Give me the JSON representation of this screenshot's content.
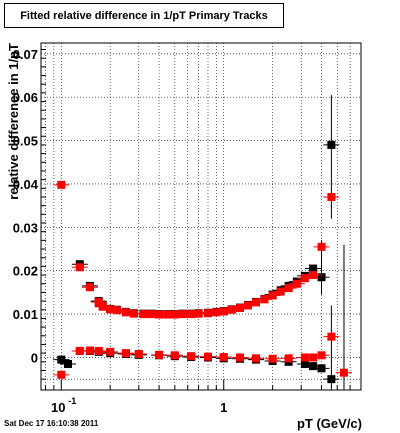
{
  "chart_data": {
    "type": "scatter",
    "title": "Fitted relative difference in 1/pT  Primary Tracks",
    "xlabel": "pT (GeV/c)",
    "ylabel": "relative difference in 1/pT",
    "x_scale": "log",
    "xlim": [
      0.075,
      7.0
    ],
    "ylim": [
      -0.0075,
      0.0725
    ],
    "grid": true,
    "x_ticks": [
      {
        "value": 0.1,
        "label": "10",
        "exponent": "-1"
      },
      {
        "value": 1,
        "label": "1",
        "exponent": ""
      }
    ],
    "y_ticks": [
      {
        "value": 0,
        "label": "0"
      },
      {
        "value": 0.01,
        "label": "0.01"
      },
      {
        "value": 0.02,
        "label": "0.02"
      },
      {
        "value": 0.03,
        "label": "0.03"
      },
      {
        "value": 0.04,
        "label": "0.04"
      },
      {
        "value": 0.05,
        "label": "0.05"
      },
      {
        "value": 0.06,
        "label": "0.06"
      },
      {
        "value": 0.07,
        "label": "0.07"
      }
    ],
    "series": [
      {
        "color": "#000000",
        "marker": "square",
        "points": [
          [
            0.1,
            -0.0005
          ],
          [
            0.13,
            0.0215
          ],
          [
            0.15,
            0.0165
          ],
          [
            0.17,
            0.013
          ],
          [
            0.18,
            0.0118
          ],
          [
            0.2,
            0.0112
          ],
          [
            0.22,
            0.011
          ],
          [
            0.25,
            0.0105
          ],
          [
            0.28,
            0.0102
          ],
          [
            0.32,
            0.0101
          ],
          [
            0.36,
            0.0101
          ],
          [
            0.4,
            0.01
          ],
          [
            0.45,
            0.01
          ],
          [
            0.5,
            0.01
          ],
          [
            0.56,
            0.0101
          ],
          [
            0.63,
            0.0101
          ],
          [
            0.7,
            0.0102
          ],
          [
            0.8,
            0.0103
          ],
          [
            0.9,
            0.0105
          ],
          [
            1.0,
            0.0107
          ],
          [
            1.12,
            0.0111
          ],
          [
            1.26,
            0.0115
          ],
          [
            1.41,
            0.0121
          ],
          [
            1.58,
            0.0128
          ],
          [
            1.78,
            0.0135
          ],
          [
            2.0,
            0.0145
          ],
          [
            2.24,
            0.0155
          ],
          [
            2.51,
            0.0165
          ],
          [
            2.82,
            0.0175
          ],
          [
            3.16,
            0.0188
          ],
          [
            3.55,
            0.0205
          ],
          [
            4.0,
            0.0185
          ],
          [
            4.6,
            0.049
          ],
          [
            0.11,
            -0.0015
          ],
          [
            0.13,
            0.0015
          ],
          [
            0.15,
            0.0015
          ],
          [
            0.17,
            0.0013
          ],
          [
            0.2,
            0.001
          ],
          [
            0.25,
            0.0008
          ],
          [
            0.3,
            0.0006
          ],
          [
            0.4,
            0.0005
          ],
          [
            0.5,
            0.0003
          ],
          [
            0.63,
            0.0001
          ],
          [
            0.8,
            0.0
          ],
          [
            1.0,
            -0.0002
          ],
          [
            1.26,
            -0.0003
          ],
          [
            1.58,
            -0.0005
          ],
          [
            2.0,
            -0.0008
          ],
          [
            2.51,
            -0.001
          ],
          [
            3.16,
            -0.0015
          ],
          [
            3.55,
            -0.002
          ],
          [
            4.0,
            -0.0025
          ],
          [
            4.6,
            -0.005
          ]
        ]
      },
      {
        "color": "#ff0000",
        "marker": "square",
        "points": [
          [
            0.1,
            0.0398
          ],
          [
            0.13,
            0.0208
          ],
          [
            0.15,
            0.0162
          ],
          [
            0.17,
            0.0128
          ],
          [
            0.18,
            0.0117
          ],
          [
            0.2,
            0.0111
          ],
          [
            0.22,
            0.0109
          ],
          [
            0.25,
            0.0104
          ],
          [
            0.28,
            0.0101
          ],
          [
            0.32,
            0.01
          ],
          [
            0.36,
            0.01
          ],
          [
            0.4,
            0.0099
          ],
          [
            0.45,
            0.0099
          ],
          [
            0.5,
            0.0099
          ],
          [
            0.56,
            0.01
          ],
          [
            0.63,
            0.01
          ],
          [
            0.7,
            0.0101
          ],
          [
            0.8,
            0.0102
          ],
          [
            0.9,
            0.0104
          ],
          [
            1.0,
            0.0106
          ],
          [
            1.12,
            0.011
          ],
          [
            1.26,
            0.0114
          ],
          [
            1.41,
            0.012
          ],
          [
            1.58,
            0.0127
          ],
          [
            1.78,
            0.0134
          ],
          [
            2.0,
            0.0143
          ],
          [
            2.24,
            0.0152
          ],
          [
            2.51,
            0.016
          ],
          [
            2.82,
            0.017
          ],
          [
            3.16,
            0.0183
          ],
          [
            3.55,
            0.019
          ],
          [
            4.0,
            0.0255
          ],
          [
            4.6,
            0.037
          ],
          [
            0.1,
            -0.004
          ],
          [
            0.13,
            0.0015
          ],
          [
            0.15,
            0.0016
          ],
          [
            0.17,
            0.0015
          ],
          [
            0.2,
            0.0013
          ],
          [
            0.25,
            0.001
          ],
          [
            0.3,
            0.0008
          ],
          [
            0.4,
            0.0006
          ],
          [
            0.5,
            0.0005
          ],
          [
            0.63,
            0.0003
          ],
          [
            0.8,
            0.0002
          ],
          [
            1.0,
            0.0001
          ],
          [
            1.26,
            0.0
          ],
          [
            1.58,
            -0.0002
          ],
          [
            2.0,
            -0.0003
          ],
          [
            2.51,
            -0.0002
          ],
          [
            3.16,
            0.0
          ],
          [
            3.55,
            0.0
          ],
          [
            4.0,
            0.0005
          ],
          [
            4.6,
            0.0048
          ],
          [
            5.5,
            -0.0035
          ]
        ]
      }
    ],
    "error_bars": [
      {
        "x": 4.6,
        "y_low": 0.032,
        "y_high": 0.0605,
        "color": "#000000"
      },
      {
        "x": 4.6,
        "y_low": -0.0075,
        "y_high": 0.012,
        "color": "#000000"
      },
      {
        "x": 5.5,
        "y_low": -0.0075,
        "y_high": 0.026,
        "color": "#000000"
      },
      {
        "x": 4.0,
        "y_low": 0.0145,
        "y_high": 0.027,
        "color": "#000000"
      }
    ]
  },
  "footer": {
    "timestamp": "Sat Dec 17 16:10:38 2011"
  }
}
